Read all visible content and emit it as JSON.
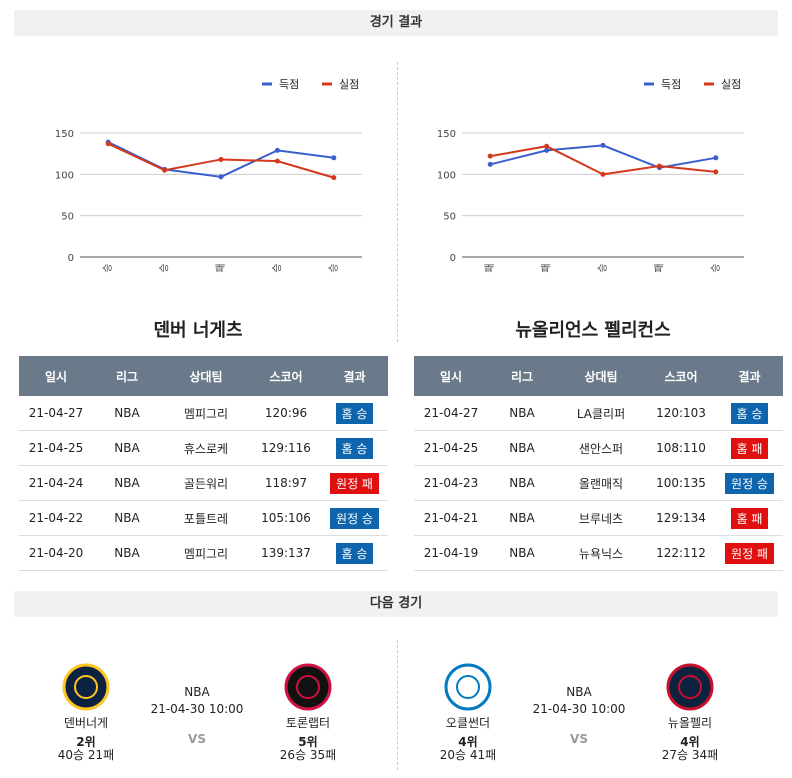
{
  "results": {
    "title": "경기 결과",
    "columns": [
      "일시",
      "리그",
      "상대팀",
      "스코어",
      "결과"
    ],
    "teams": [
      {
        "name": "덴버 너게츠",
        "rows": [
          {
            "date": "21-04-27",
            "league": "NBA",
            "opponent": "멤피그리",
            "score": "120:96",
            "result": "홈 승",
            "color": "#0e65ad"
          },
          {
            "date": "21-04-25",
            "league": "NBA",
            "opponent": "휴스로케",
            "score": "129:116",
            "result": "홈 승",
            "color": "#0e65ad"
          },
          {
            "date": "21-04-24",
            "league": "NBA",
            "opponent": "골든워리",
            "score": "118:97",
            "result": "원정 패",
            "color": "#e01010"
          },
          {
            "date": "21-04-22",
            "league": "NBA",
            "opponent": "포틀트레",
            "score": "105:106",
            "result": "원정 승",
            "color": "#0e65ad"
          },
          {
            "date": "21-04-20",
            "league": "NBA",
            "opponent": "멤피그리",
            "score": "139:137",
            "result": "홈 승",
            "color": "#0e65ad"
          }
        ]
      },
      {
        "name": "뉴올리언스 펠리컨스",
        "rows": [
          {
            "date": "21-04-27",
            "league": "NBA",
            "opponent": "LA클리퍼",
            "score": "120:103",
            "result": "홈 승",
            "color": "#0e65ad"
          },
          {
            "date": "21-04-25",
            "league": "NBA",
            "opponent": "샌안스퍼",
            "score": "108:110",
            "result": "홈 패",
            "color": "#e01010"
          },
          {
            "date": "21-04-23",
            "league": "NBA",
            "opponent": "올랜매직",
            "score": "100:135",
            "result": "원정 승",
            "color": "#0e65ad"
          },
          {
            "date": "21-04-21",
            "league": "NBA",
            "opponent": "브루네츠",
            "score": "129:134",
            "result": "홈 패",
            "color": "#e01010"
          },
          {
            "date": "21-04-19",
            "league": "NBA",
            "opponent": "뉴욕닉스",
            "score": "122:112",
            "result": "원정 패",
            "color": "#e01010"
          }
        ]
      }
    ]
  },
  "chart_data": [
    {
      "type": "line",
      "categories": [
        "승",
        "승",
        "패",
        "승",
        "승"
      ],
      "series": [
        {
          "name": "득점",
          "color": "#3a5fcd",
          "values": [
            139,
            106,
            97,
            129,
            120
          ]
        },
        {
          "name": "실점",
          "color": "#d6381c",
          "values": [
            137,
            105,
            118,
            116,
            96
          ]
        }
      ],
      "ylim": [
        0,
        150
      ],
      "yticks": [
        0,
        50,
        100,
        150
      ],
      "grid": true,
      "legend": "top-right"
    },
    {
      "type": "line",
      "categories": [
        "패",
        "패",
        "승",
        "패",
        "승"
      ],
      "series": [
        {
          "name": "득점",
          "color": "#3a5fcd",
          "values": [
            112,
            129,
            135,
            108,
            120
          ]
        },
        {
          "name": "실점",
          "color": "#d6381c",
          "values": [
            122,
            134,
            100,
            110,
            103
          ]
        }
      ],
      "ylim": [
        0,
        150
      ],
      "yticks": [
        0,
        50,
        100,
        150
      ],
      "grid": true,
      "legend": "top-right"
    }
  ],
  "next": {
    "title": "다음 경기",
    "games": [
      {
        "league": "NBA",
        "time": "21-04-30 10:00",
        "vs": "VS",
        "home": {
          "name": "덴버너게",
          "rank": "2위",
          "record": "40승 21패"
        },
        "away": {
          "name": "토론랩터",
          "rank": "5위",
          "record": "26승 35패"
        }
      },
      {
        "league": "NBA",
        "time": "21-04-30 10:00",
        "vs": "VS",
        "home": {
          "name": "오클썬더",
          "rank": "4위",
          "record": "20승 41패"
        },
        "away": {
          "name": "뉴올펠리",
          "rank": "4위",
          "record": "27승 34패"
        }
      }
    ]
  }
}
